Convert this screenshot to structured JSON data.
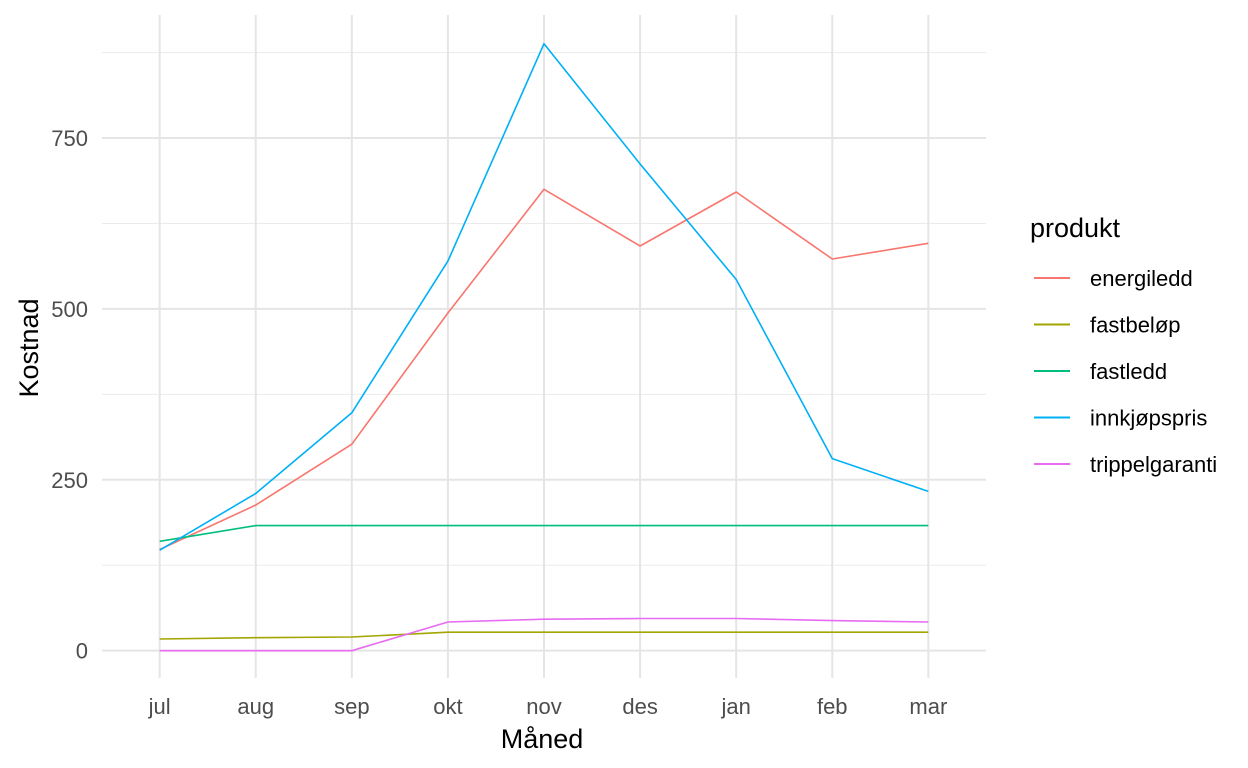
{
  "chart_data": {
    "type": "line",
    "xlabel": "Måned",
    "ylabel": "Kostnad",
    "categories": [
      "jul",
      "aug",
      "sep",
      "okt",
      "nov",
      "des",
      "jan",
      "feb",
      "mar"
    ],
    "y_ticks": [
      0,
      250,
      500,
      750
    ],
    "ylim": [
      -40,
      930
    ],
    "grid": true,
    "legend": {
      "title": "produkt",
      "position": "right"
    },
    "series": [
      {
        "name": "energiledd",
        "color": "#F8766D",
        "values": [
          148,
          213,
          302,
          494,
          675,
          592,
          671,
          573,
          596
        ]
      },
      {
        "name": "fastbeløp",
        "color": "#A3A500",
        "values": [
          17,
          19,
          20,
          27,
          27,
          27,
          27,
          27,
          27
        ]
      },
      {
        "name": "fastledd",
        "color": "#00BF7D",
        "values": [
          160,
          183,
          183,
          183,
          183,
          183,
          183,
          183,
          183
        ]
      },
      {
        "name": "innkjøpspris",
        "color": "#00B0F6",
        "values": [
          147,
          230,
          348,
          570,
          888,
          712,
          543,
          281,
          233
        ]
      },
      {
        "name": "trippelgaranti",
        "color": "#E76BF3",
        "values": [
          0,
          0,
          0,
          42,
          46,
          47,
          47,
          44,
          42
        ]
      }
    ]
  }
}
